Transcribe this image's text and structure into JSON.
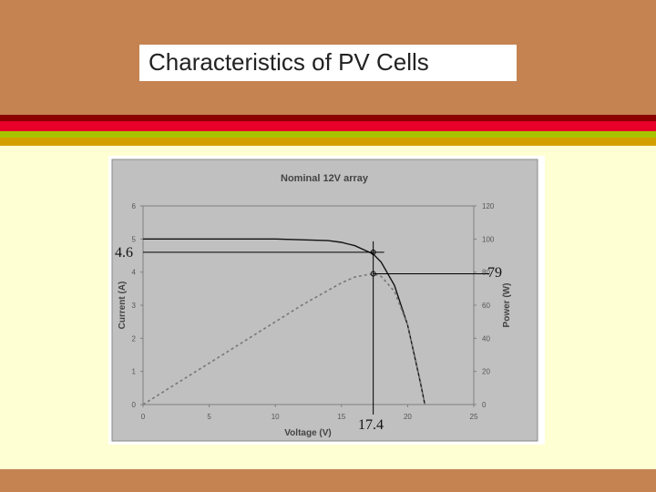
{
  "slide": {
    "title": "Characteristics of PV Cells",
    "colors": {
      "background": "#c58352",
      "content": "#ffffd4",
      "stripe_dark_red": "#8b0000",
      "stripe_red": "#e8002a",
      "stripe_green": "#a8c400",
      "stripe_gold": "#d4a000"
    }
  },
  "chart_data": {
    "type": "line",
    "title": "Nominal 12V array",
    "xlabel": "Voltage (V)",
    "ylabel_left": "Current (A)",
    "ylabel_right": "Power (W)",
    "xlim": [
      0,
      25
    ],
    "ylim_left": [
      0,
      6
    ],
    "ylim_right": [
      0,
      120
    ],
    "x_ticks": [
      "0",
      "5",
      "10",
      "15",
      "20",
      "25"
    ],
    "y_left_ticks": [
      "0",
      "1",
      "2",
      "3",
      "4",
      "5",
      "6"
    ],
    "y_right_ticks": [
      "0",
      "20",
      "40",
      "60",
      "80",
      "100",
      "120"
    ],
    "grid": false,
    "series": [
      {
        "axis": "left",
        "style": "solid",
        "x": [
          0,
          10,
          14,
          15,
          16,
          17,
          17.4,
          18,
          19,
          20,
          20.5,
          21,
          21.3
        ],
        "y": [
          5.0,
          5.0,
          4.95,
          4.9,
          4.8,
          4.62,
          4.55,
          4.3,
          3.6,
          2.4,
          1.5,
          0.6,
          0
        ]
      },
      {
        "axis": "right",
        "style": "dashed",
        "x": [
          0,
          2,
          5,
          8,
          10,
          12,
          14,
          15,
          16,
          17,
          17.4,
          18,
          19,
          20,
          20.5,
          21,
          21.3
        ],
        "y": [
          0,
          10,
          25,
          40,
          50,
          60,
          69,
          73.5,
          77,
          78.5,
          79,
          77.4,
          68.4,
          48,
          30.8,
          12.6,
          0
        ]
      }
    ],
    "annotations": {
      "current_label": "4.6",
      "power_label": "79",
      "voltage_label": "17.4",
      "current_value": 4.6,
      "power_value": 79,
      "voltage_value": 17.4
    }
  }
}
